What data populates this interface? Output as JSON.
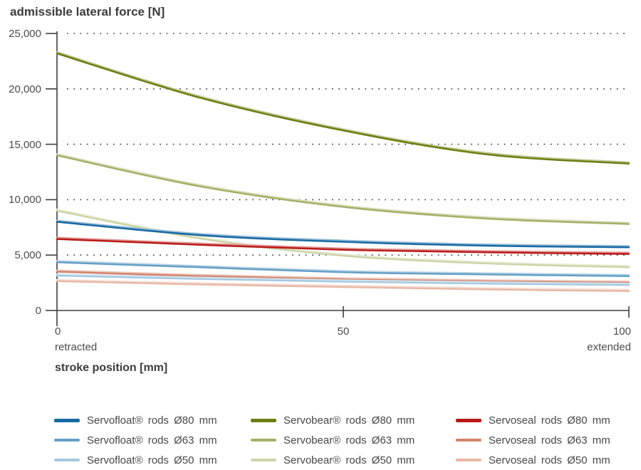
{
  "title": "admissible lateral force [N]",
  "y_axis": {
    "tick_labels": [
      "25,000",
      "20,000",
      "15,000",
      "10,000",
      "5,000",
      "0"
    ]
  },
  "x_axis": {
    "tick_labels": [
      "0",
      "50",
      "100"
    ],
    "left_sublabel": "retracted",
    "right_sublabel": "extended",
    "title": "stroke position [mm]"
  },
  "chart_data": {
    "type": "line",
    "title": "admissible lateral force [N]",
    "xlabel": "stroke position [mm]",
    "ylabel": "admissible lateral force [N]",
    "xlim": [
      0,
      100
    ],
    "ylim": [
      0,
      25000
    ],
    "x_ticks": [
      0,
      50,
      100
    ],
    "y_ticks": [
      0,
      5000,
      10000,
      15000,
      20000,
      25000
    ],
    "grid": "dotted-horizontal",
    "legend_position": "bottom",
    "x": [
      0,
      25,
      50,
      75,
      100
    ],
    "series": [
      {
        "name": "Servofloat® rods Ø80 mm",
        "color": "#1769a4",
        "values": [
          8000,
          6800,
          6200,
          5850,
          5700
        ]
      },
      {
        "name": "Servofloat® rods Ø63 mm",
        "color": "#649fc7",
        "values": [
          4350,
          3900,
          3450,
          3250,
          3100
        ]
      },
      {
        "name": "Servofloat® rods Ø50 mm",
        "color": "#a7c9e1",
        "values": [
          3150,
          2850,
          2600,
          2430,
          2300
        ]
      },
      {
        "name": "Servobear® rods Ø80 mm",
        "color": "#6f7d10",
        "values": [
          23200,
          19200,
          16250,
          14100,
          13250
        ]
      },
      {
        "name": "Servobear® rods Ø63 mm",
        "color": "#a6b066",
        "values": [
          14000,
          11200,
          9350,
          8300,
          7800
        ]
      },
      {
        "name": "Servobear® rods Ø50 mm",
        "color": "#ced4a8",
        "values": [
          9000,
          6500,
          4950,
          4250,
          3900
        ]
      },
      {
        "name": "Servoseal rods Ø80 mm",
        "color": "#b91a18",
        "values": [
          6450,
          5930,
          5480,
          5250,
          5100
        ]
      },
      {
        "name": "Servoseal rods Ø63 mm",
        "color": "#d3826a",
        "values": [
          3500,
          3100,
          2800,
          2620,
          2500
        ]
      },
      {
        "name": "Servoseal rods Ø50 mm",
        "color": "#e9b8a5",
        "values": [
          2650,
          2350,
          2120,
          1900,
          1750
        ]
      }
    ],
    "draw_order": [
      3,
      4,
      5,
      6,
      7,
      8,
      0,
      1,
      2
    ]
  }
}
